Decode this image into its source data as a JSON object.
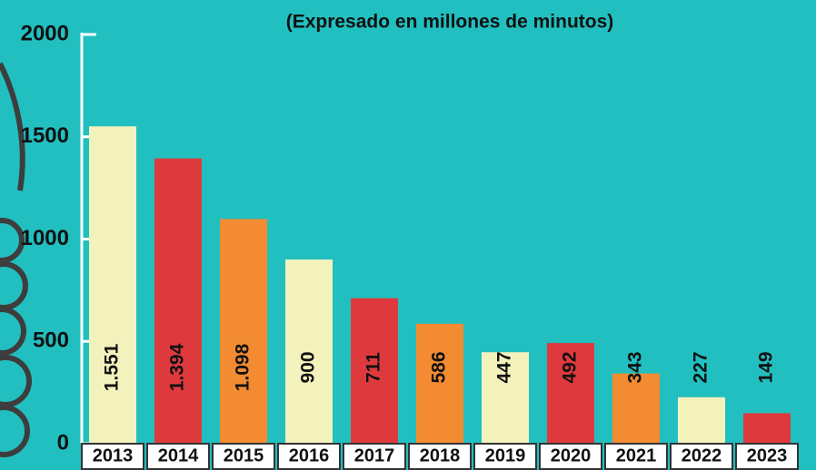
{
  "chart_data": {
    "type": "bar",
    "title": "(Expresado en millones de minutos)",
    "categories": [
      "2013",
      "2014",
      "2015",
      "2016",
      "2017",
      "2018",
      "2019",
      "2020",
      "2021",
      "2022",
      "2023"
    ],
    "values": [
      1551,
      1394,
      1098,
      900,
      711,
      586,
      447,
      492,
      343,
      227,
      149
    ],
    "value_labels": [
      "1.551",
      "1.394",
      "1.098",
      "900",
      "711",
      "586",
      "447",
      "492",
      "343",
      "227",
      "149"
    ],
    "colors": [
      "#f3f2bd",
      "#de3a3e",
      "#f28b32",
      "#f3f2bd",
      "#de3a3e",
      "#f28b32",
      "#f3f2bd",
      "#de3a3e",
      "#f28b32",
      "#f3f2bd",
      "#de3a3e"
    ],
    "ylim": [
      0,
      2000
    ],
    "yticks": [
      0,
      500,
      1000,
      1500,
      2000
    ]
  }
}
